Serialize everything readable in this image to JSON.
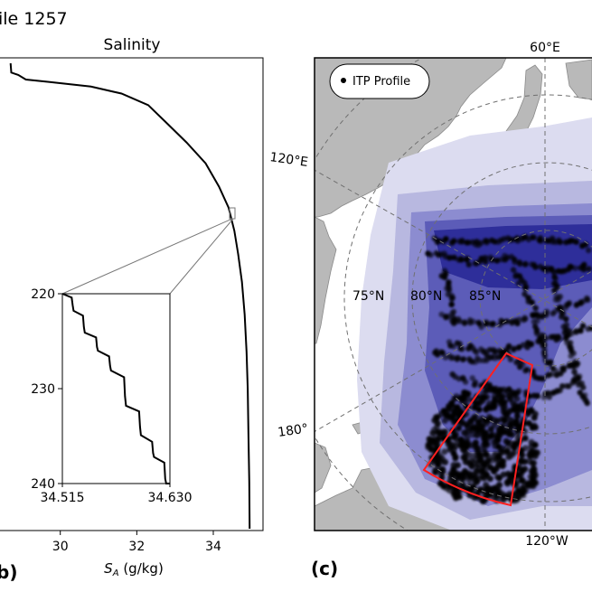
{
  "figure": {
    "suptitle_fragment": "ile 1257",
    "panel_b_label": "b)",
    "panel_c_label": "(c)"
  },
  "colors": {
    "profile_line": "#000000",
    "inset_frame": "#777777",
    "land": "#b9b9b9",
    "ocean": "#ffffff",
    "density_levels": [
      "#dcdcf0",
      "#b8b8e0",
      "#8c8cd0",
      "#5c5cb8",
      "#2e2e9a"
    ],
    "region_box": "#ff2020",
    "graticule": "#707070"
  },
  "chart_data": [
    {
      "type": "line",
      "title": "Salinity",
      "xlabel_main": "S",
      "xlabel_sub": "A",
      "xlabel_unit": " (g/kg)",
      "xlim": [
        28.4,
        35.3
      ],
      "xticks": [
        "30",
        "32",
        "34"
      ],
      "xtick_values": [
        30,
        32,
        34
      ],
      "y_inverted": true,
      "ylim_relative": [
        0,
        1
      ],
      "series": [
        {
          "name": "profile",
          "points": [
            [
              28.7,
              0.0
            ],
            [
              28.72,
              0.02
            ],
            [
              28.9,
              0.025
            ],
            [
              29.1,
              0.035
            ],
            [
              29.7,
              0.04
            ],
            [
              30.8,
              0.05
            ],
            [
              31.6,
              0.065
            ],
            [
              32.3,
              0.09
            ],
            [
              32.8,
              0.13
            ],
            [
              33.3,
              0.17
            ],
            [
              33.8,
              0.215
            ],
            [
              34.15,
              0.265
            ],
            [
              34.4,
              0.31
            ],
            [
              34.55,
              0.36
            ],
            [
              34.65,
              0.41
            ],
            [
              34.75,
              0.47
            ],
            [
              34.82,
              0.54
            ],
            [
              34.87,
              0.62
            ],
            [
              34.9,
              0.7
            ],
            [
              34.92,
              0.8
            ],
            [
              34.94,
              0.9
            ],
            [
              34.95,
              1.0
            ]
          ]
        }
      ],
      "inset": {
        "xlim": [
          34.515,
          34.63
        ],
        "ylim": [
          220,
          240
        ],
        "xticks": [
          "34.515",
          "34.630"
        ],
        "yticks": [
          "220",
          "230",
          "240"
        ],
        "ytick_values": [
          220,
          230,
          240
        ],
        "staircase_points": [
          [
            34.515,
            220.0
          ],
          [
            34.525,
            220.4
          ],
          [
            34.526,
            221.2
          ],
          [
            34.527,
            221.8
          ],
          [
            34.537,
            222.3
          ],
          [
            34.538,
            223.5
          ],
          [
            34.539,
            224.1
          ],
          [
            34.551,
            224.6
          ],
          [
            34.552,
            225.6
          ],
          [
            34.553,
            226.0
          ],
          [
            34.565,
            226.6
          ],
          [
            34.566,
            227.6
          ],
          [
            34.567,
            228.1
          ],
          [
            34.581,
            228.8
          ],
          [
            34.582,
            230.8
          ],
          [
            34.583,
            231.8
          ],
          [
            34.597,
            232.4
          ],
          [
            34.598,
            234.0
          ],
          [
            34.599,
            234.9
          ],
          [
            34.611,
            235.6
          ],
          [
            34.612,
            236.8
          ],
          [
            34.613,
            237.2
          ],
          [
            34.624,
            237.8
          ],
          [
            34.625,
            239.5
          ],
          [
            34.626,
            240.0
          ],
          [
            34.63,
            240.0
          ]
        ]
      }
    },
    {
      "type": "map",
      "projection": "north-polar-stereographic",
      "legend": {
        "label": "ITP Profile",
        "position": "top-left"
      },
      "lon_labels": [
        "60°E",
        "120°E",
        "180°",
        "120°W"
      ],
      "lat_labels": [
        "75°N",
        "80°N",
        "85°N"
      ]
    }
  ]
}
